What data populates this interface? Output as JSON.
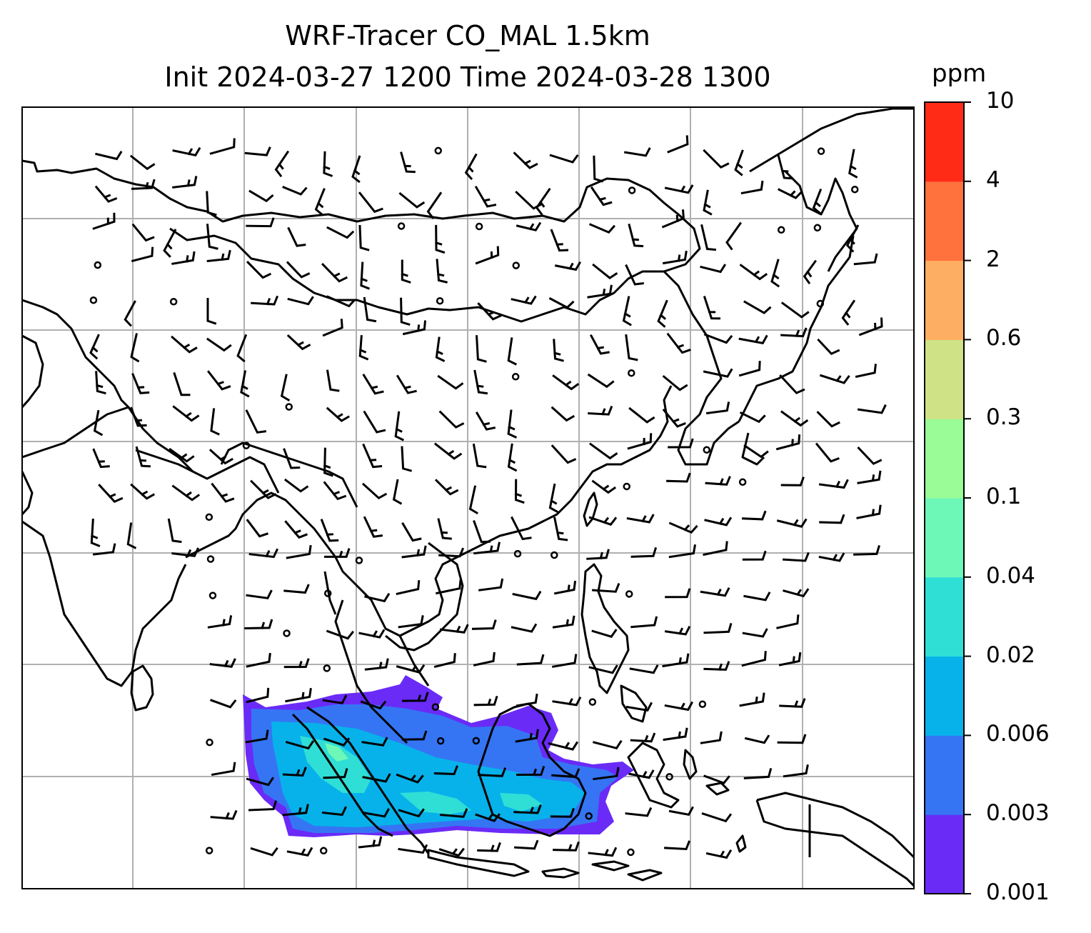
{
  "title": {
    "line1": "WRF-Tracer CO_MAL 1.5km",
    "line2": "Init 2024-03-27 1200 Time 2024-03-28 1300"
  },
  "colorbar": {
    "unit": "ppm",
    "levels": [
      "0.001",
      "0.003",
      "0.006",
      "0.02",
      "0.04",
      "0.1",
      "0.3",
      "0.6",
      "2",
      "4",
      "10"
    ],
    "colors": [
      "#6a2bf7",
      "#3575f4",
      "#07b2ea",
      "#2fdfd6",
      "#6ef8b8",
      "#9afc96",
      "#d0e286",
      "#feae62",
      "#ff713d",
      "#ff2b17"
    ]
  },
  "map": {
    "gridline_color": "#b0b0b0",
    "coastline_color": "#000000",
    "wind_barb_color": "#000000"
  }
}
